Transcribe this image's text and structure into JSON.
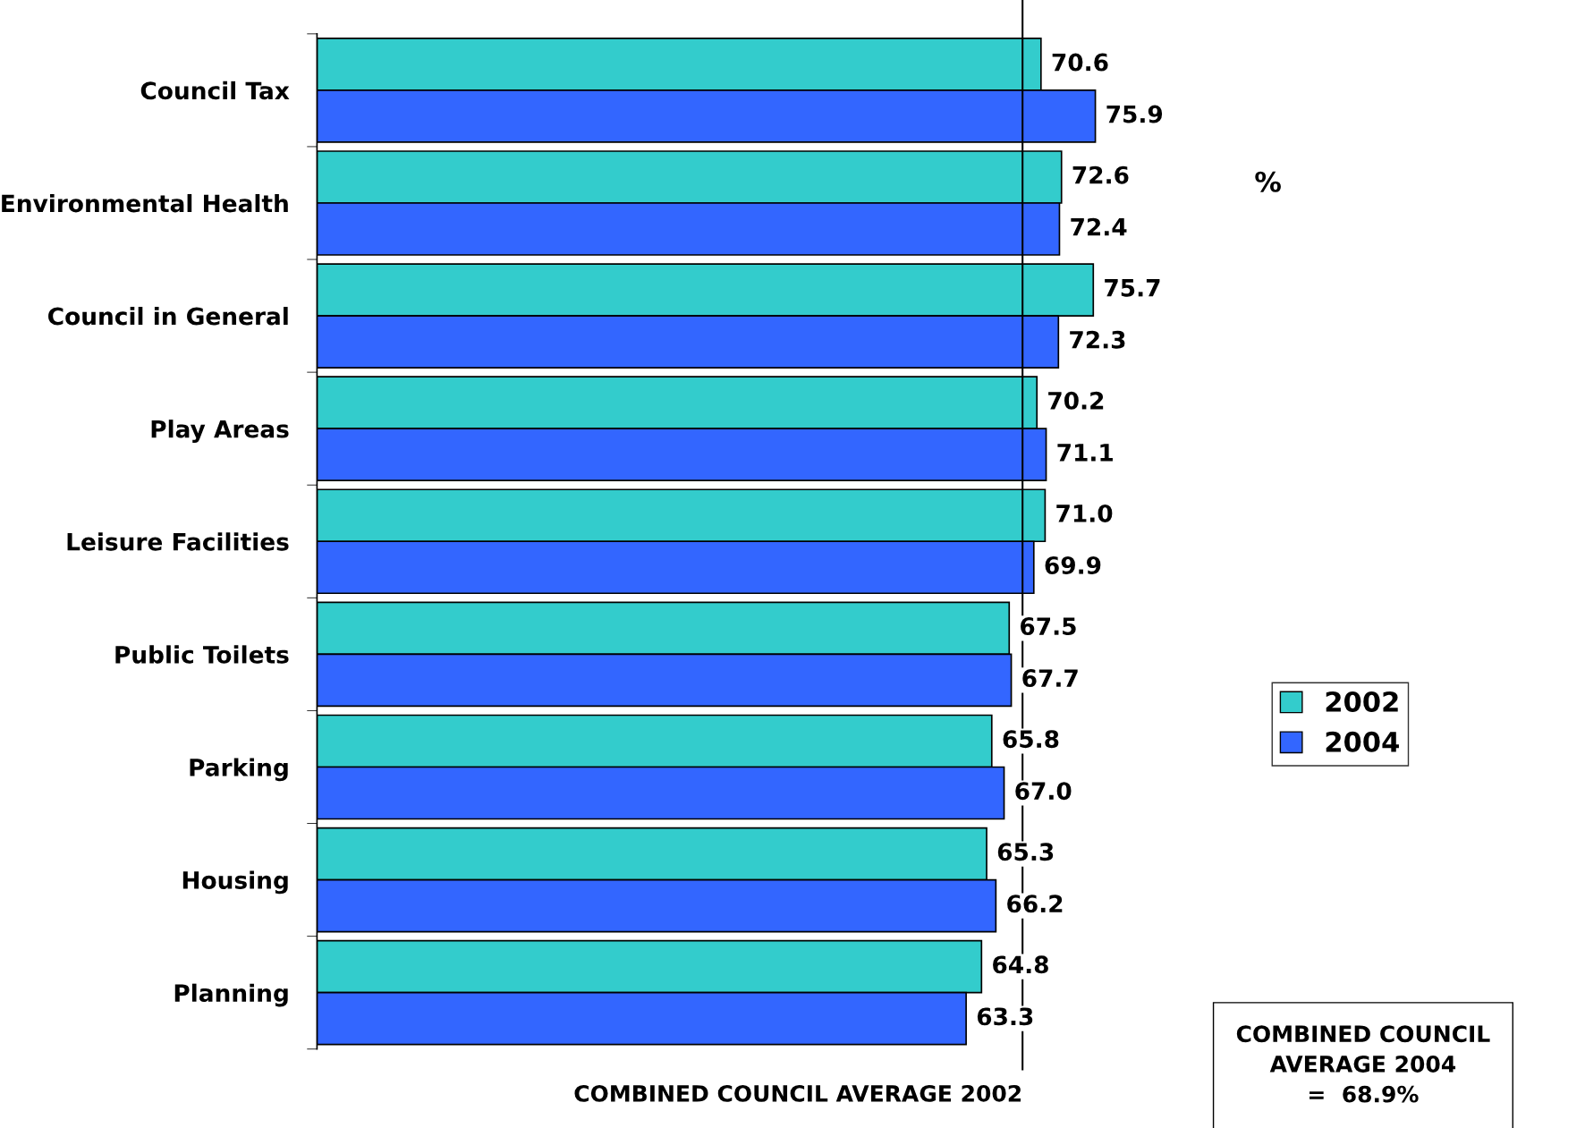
{
  "chart_data": {
    "type": "bar",
    "orientation": "horizontal",
    "categories": [
      "Council Tax",
      "Environmental Health",
      "Council in General",
      "Play Areas",
      "Leisure Facilities",
      "Public Toilets",
      "Parking",
      "Housing",
      "Planning"
    ],
    "series": [
      {
        "name": "2002",
        "color": "#33cccc",
        "values": [
          70.6,
          72.6,
          75.7,
          70.2,
          71.0,
          67.5,
          65.8,
          65.3,
          64.8
        ],
        "value_labels": [
          "70.6",
          "72.6",
          "75.7",
          "70.2",
          "71.0",
          "67.5",
          "65.8",
          "65.3",
          "64.8"
        ]
      },
      {
        "name": "2004",
        "color": "#3366ff",
        "values": [
          75.9,
          72.4,
          72.3,
          71.1,
          69.9,
          67.7,
          67.0,
          66.2,
          63.3
        ],
        "value_labels": [
          "75.9",
          "72.4",
          "72.3",
          "71.1",
          "69.9",
          "67.7",
          "67.0",
          "66.2",
          "63.3"
        ]
      }
    ],
    "tick_labels": "y",
    "legend": "right",
    "grid": false,
    "ref_lines": [
      {
        "axis": "x",
        "value": 68.8,
        "label": "COMBINED COUNCIL AVERAGE 2002",
        "color": "#000000"
      }
    ],
    "annotations": [
      "%",
      "COMBINED COUNCIL\nAVERAGE 2004\n=  68.9%"
    ]
  }
}
